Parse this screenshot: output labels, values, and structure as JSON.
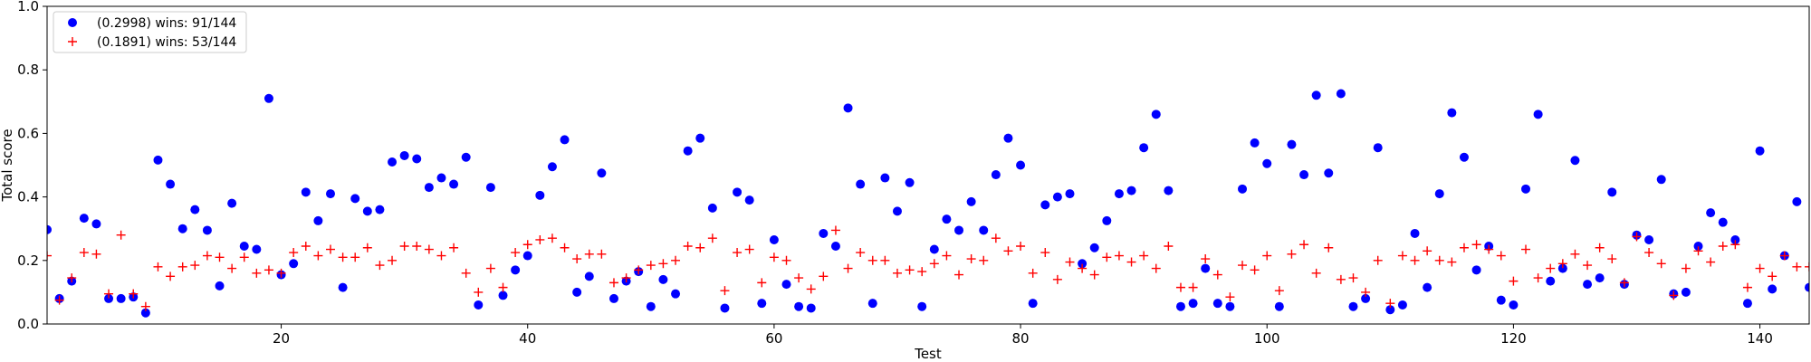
{
  "chart_data": {
    "type": "scatter",
    "xlabel": "Test",
    "ylabel": "Total score",
    "xlim": [
      1,
      144
    ],
    "ylim": [
      0,
      1
    ],
    "xticks": [
      20,
      40,
      60,
      80,
      100,
      120,
      140
    ],
    "yticks": [
      0.0,
      0.2,
      0.4,
      0.6,
      0.8,
      1.0
    ],
    "ytick_labels": [
      "0.0",
      "0.2",
      "0.4",
      "0.6",
      "0.8",
      "1.0"
    ],
    "grid": false,
    "legend_position": "top-left",
    "series": [
      {
        "name": "(0.2998) wins: 91/144",
        "marker": "circle",
        "color": "#0000ff",
        "y": [
          0.297,
          0.08,
          0.135,
          0.333,
          0.315,
          0.08,
          0.08,
          0.085,
          0.035,
          0.516,
          0.44,
          0.3,
          0.36,
          0.295,
          0.12,
          0.38,
          0.245,
          0.235,
          0.71,
          0.155,
          0.19,
          0.415,
          0.325,
          0.41,
          0.115,
          0.395,
          0.355,
          0.36,
          0.51,
          0.53,
          0.52,
          0.43,
          0.46,
          0.44,
          0.525,
          0.06,
          0.43,
          0.09,
          0.17,
          0.215,
          0.405,
          0.495,
          0.58,
          0.1,
          0.15,
          0.475,
          0.08,
          0.135,
          0.165,
          0.055,
          0.14,
          0.095,
          0.545,
          0.585,
          0.365,
          0.05,
          0.415,
          0.39,
          0.065,
          0.265,
          0.125,
          0.055,
          0.05,
          0.285,
          0.245,
          0.68,
          0.44,
          0.065,
          0.46,
          0.355,
          0.445,
          0.055,
          0.235,
          0.33,
          0.295,
          0.385,
          0.295,
          0.47,
          0.585,
          0.5,
          0.065,
          0.375,
          0.4,
          0.41,
          0.19,
          0.24,
          0.325,
          0.41,
          0.42,
          0.555,
          0.66,
          0.42,
          0.055,
          0.065,
          0.175,
          0.065,
          0.055,
          0.425,
          0.57,
          0.505,
          0.055,
          0.565,
          0.47,
          0.72,
          0.475,
          0.725,
          0.055,
          0.08,
          0.555,
          0.045,
          0.06,
          0.285,
          0.115,
          0.41,
          0.665,
          0.525,
          0.17,
          0.245,
          0.075,
          0.06,
          0.425,
          0.66,
          0.135,
          0.175,
          0.515,
          0.125,
          0.145,
          0.415,
          0.125,
          0.28,
          0.265,
          0.455,
          0.095,
          0.1,
          0.245,
          0.35,
          0.32,
          0.265,
          0.065,
          0.545,
          0.11,
          0.215,
          0.385,
          0.115
        ]
      },
      {
        "name": "(0.1891) wins: 53/144",
        "marker": "plus",
        "color": "#ff0000",
        "y": [
          0.215,
          0.075,
          0.145,
          0.225,
          0.22,
          0.095,
          0.28,
          0.095,
          0.055,
          0.18,
          0.15,
          0.18,
          0.185,
          0.215,
          0.21,
          0.175,
          0.21,
          0.16,
          0.17,
          0.16,
          0.225,
          0.245,
          0.215,
          0.235,
          0.21,
          0.21,
          0.24,
          0.185,
          0.2,
          0.245,
          0.245,
          0.235,
          0.215,
          0.24,
          0.16,
          0.1,
          0.175,
          0.115,
          0.225,
          0.25,
          0.265,
          0.27,
          0.24,
          0.205,
          0.22,
          0.22,
          0.13,
          0.145,
          0.17,
          0.185,
          0.19,
          0.2,
          0.245,
          0.24,
          0.27,
          0.105,
          0.225,
          0.235,
          0.13,
          0.21,
          0.2,
          0.145,
          0.11,
          0.15,
          0.295,
          0.175,
          0.225,
          0.2,
          0.2,
          0.16,
          0.17,
          0.165,
          0.19,
          0.215,
          0.155,
          0.205,
          0.2,
          0.27,
          0.23,
          0.245,
          0.16,
          0.225,
          0.14,
          0.195,
          0.175,
          0.155,
          0.21,
          0.215,
          0.195,
          0.215,
          0.175,
          0.245,
          0.115,
          0.115,
          0.205,
          0.155,
          0.085,
          0.185,
          0.17,
          0.215,
          0.105,
          0.22,
          0.25,
          0.16,
          0.24,
          0.14,
          0.145,
          0.1,
          0.2,
          0.065,
          0.215,
          0.2,
          0.23,
          0.2,
          0.195,
          0.24,
          0.25,
          0.235,
          0.215,
          0.135,
          0.235,
          0.145,
          0.175,
          0.19,
          0.22,
          0.185,
          0.24,
          0.205,
          0.13,
          0.275,
          0.225,
          0.19,
          0.09,
          0.175,
          0.23,
          0.195,
          0.245,
          0.25,
          0.115,
          0.175,
          0.15,
          0.215,
          0.18,
          0.18
        ]
      }
    ]
  }
}
